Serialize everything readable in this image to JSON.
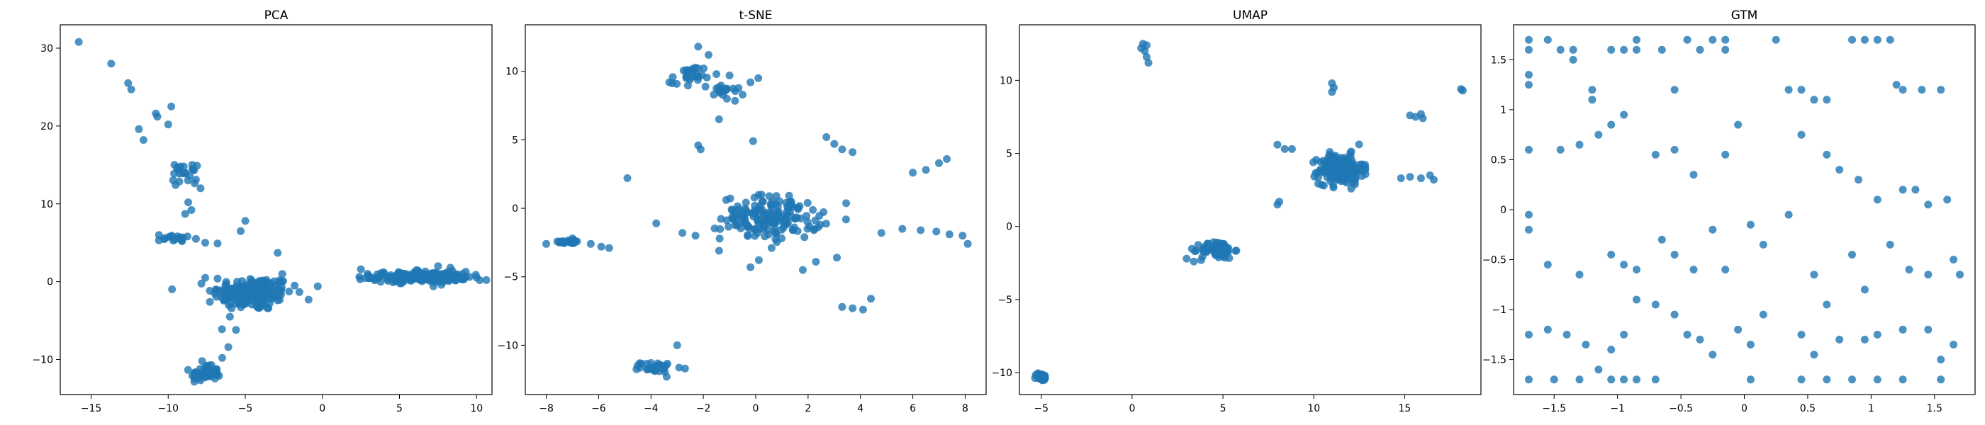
{
  "figure": {
    "background": "#ffffff",
    "marker_color": "#1f77b4",
    "marker_alpha": 0.8
  },
  "chart_data": [
    {
      "type": "scatter",
      "title": "PCA",
      "xlabel": "",
      "ylabel": "",
      "xlim": [
        -17,
        11
      ],
      "ylim": [
        -14.5,
        33
      ],
      "xticks": [
        -15,
        -10,
        -5,
        0,
        5,
        10
      ],
      "yticks": [
        -10,
        0,
        10,
        20,
        30
      ],
      "grid": false,
      "points": [
        [
          -15.8,
          30.8
        ],
        [
          -13.7,
          28.0
        ],
        [
          -12.6,
          25.5
        ],
        [
          -12.4,
          24.7
        ],
        [
          -11.9,
          19.6
        ],
        [
          -11.6,
          18.2
        ],
        [
          -10.8,
          21.6
        ],
        [
          -10.7,
          21.2
        ],
        [
          -9.8,
          22.5
        ],
        [
          -10.0,
          20.2
        ],
        [
          -9.6,
          15.0
        ],
        [
          -9.2,
          14.8
        ],
        [
          -8.9,
          14.0
        ],
        [
          -8.6,
          13.6
        ],
        [
          -8.2,
          13.1
        ],
        [
          -7.9,
          12.0
        ],
        [
          -8.7,
          10.2
        ],
        [
          -8.5,
          9.2
        ],
        [
          -8.9,
          8.7
        ],
        [
          -10.6,
          6.0
        ],
        [
          -10.2,
          5.6
        ],
        [
          -9.8,
          5.8
        ],
        [
          -8.2,
          5.5
        ],
        [
          -7.6,
          5.0
        ],
        [
          -6.8,
          4.9
        ],
        [
          -5.3,
          6.5
        ],
        [
          -5.0,
          7.8
        ],
        [
          -10.6,
          5.3
        ],
        [
          -9.1,
          5.2
        ],
        [
          -7.6,
          0.5
        ],
        [
          -6.8,
          0.4
        ],
        [
          -6.9,
          -1.0
        ],
        [
          -7.3,
          -2.6
        ],
        [
          -6.3,
          -2.2
        ],
        [
          -6.0,
          -4.5
        ],
        [
          -5.6,
          -6.2
        ],
        [
          -6.1,
          -8.4
        ],
        [
          -2.9,
          3.7
        ],
        [
          -2.6,
          1.0
        ],
        [
          -1.8,
          -0.5
        ],
        [
          -0.3,
          -0.6
        ],
        [
          -7.5,
          -10.8
        ],
        [
          -7.0,
          -11.5
        ],
        [
          -6.7,
          -12.1
        ],
        [
          -8.2,
          -12.0
        ],
        [
          -7.8,
          -10.2
        ],
        [
          -6.5,
          -9.8
        ],
        [
          2.5,
          1.6
        ],
        [
          3.1,
          0.6
        ],
        [
          4.5,
          0.4
        ],
        [
          6.2,
          1.4
        ],
        [
          7.5,
          2.0
        ],
        [
          8.3,
          1.8
        ],
        [
          9.3,
          0.6
        ],
        [
          10.2,
          0.2
        ],
        [
          3.8,
          1.1
        ],
        [
          5.7,
          0.3
        ],
        [
          7.2,
          -0.6
        ]
      ],
      "clusters": [
        {
          "center": [
            -4.5,
            -1.5
          ],
          "spread": [
            2.6,
            2.2
          ],
          "count": 180
        },
        {
          "center": [
            -7.6,
            -11.8
          ],
          "spread": [
            0.9,
            0.9
          ],
          "count": 60
        },
        {
          "center": [
            6.3,
            0.6
          ],
          "spread": [
            3.1,
            0.7
          ],
          "count": 190
        },
        {
          "center": [
            -9.1,
            13.8
          ],
          "spread": [
            0.9,
            1.1
          ],
          "count": 18
        },
        {
          "center": [
            -9.2,
            5.6
          ],
          "spread": [
            0.9,
            0.4
          ],
          "count": 12
        }
      ]
    },
    {
      "type": "scatter",
      "title": "t-SNE",
      "xlabel": "",
      "ylabel": "",
      "xlim": [
        -8.8,
        8.8
      ],
      "ylim": [
        -13.6,
        13.4
      ],
      "xticks": [
        -8,
        -6,
        -4,
        -2,
        0,
        2,
        4,
        6,
        8
      ],
      "yticks": [
        -10,
        -5,
        0,
        5,
        10
      ],
      "grid": false,
      "points": [
        [
          -2.2,
          11.8
        ],
        [
          -1.8,
          11.2
        ],
        [
          -2.4,
          10.2
        ],
        [
          -1.5,
          9.8
        ],
        [
          -3.3,
          9.2
        ],
        [
          -1.0,
          9.7
        ],
        [
          -0.2,
          9.2
        ],
        [
          0.1,
          9.5
        ],
        [
          -1.6,
          8.3
        ],
        [
          -1.1,
          8.0
        ],
        [
          -0.5,
          8.3
        ],
        [
          -1.4,
          6.5
        ],
        [
          -2.2,
          4.6
        ],
        [
          -2.1,
          4.3
        ],
        [
          -0.1,
          4.9
        ],
        [
          2.7,
          5.2
        ],
        [
          3.0,
          4.7
        ],
        [
          3.3,
          4.3
        ],
        [
          3.7,
          4.1
        ],
        [
          -4.9,
          2.2
        ],
        [
          6.0,
          2.6
        ],
        [
          6.5,
          2.8
        ],
        [
          7.0,
          3.3
        ],
        [
          7.3,
          3.6
        ],
        [
          -3.8,
          -1.1
        ],
        [
          -2.8,
          -1.8
        ],
        [
          -2.3,
          -2.0
        ],
        [
          -1.4,
          -3.1
        ],
        [
          -0.2,
          -4.3
        ],
        [
          1.8,
          -4.5
        ],
        [
          2.3,
          -3.9
        ],
        [
          3.1,
          -3.6
        ],
        [
          4.8,
          -1.8
        ],
        [
          5.6,
          -1.5
        ],
        [
          6.3,
          -1.6
        ],
        [
          6.9,
          -1.7
        ],
        [
          7.4,
          -1.9
        ],
        [
          7.9,
          -2.0
        ],
        [
          8.1,
          -2.6
        ],
        [
          3.3,
          -7.2
        ],
        [
          3.7,
          -7.3
        ],
        [
          4.1,
          -7.4
        ],
        [
          4.4,
          -6.6
        ],
        [
          -8.0,
          -2.6
        ],
        [
          -7.5,
          -2.5
        ],
        [
          -7.0,
          -2.2
        ],
        [
          -6.3,
          -2.6
        ],
        [
          -5.9,
          -2.8
        ],
        [
          -5.6,
          -2.9
        ],
        [
          -3.0,
          -10.0
        ],
        [
          -2.7,
          -11.7
        ],
        [
          -4.0,
          -11.3
        ],
        [
          -3.4,
          -12.3
        ]
      ],
      "clusters": [
        {
          "center": [
            0.6,
            -0.7
          ],
          "spread": [
            1.9,
            1.6
          ],
          "count": 170
        },
        {
          "center": [
            -3.8,
            -11.6
          ],
          "spread": [
            0.6,
            0.35
          ],
          "count": 30
        },
        {
          "center": [
            -2.6,
            9.5
          ],
          "spread": [
            0.6,
            0.9
          ],
          "count": 25
        },
        {
          "center": [
            -1.2,
            8.6
          ],
          "spread": [
            0.6,
            0.5
          ],
          "count": 18
        },
        {
          "center": [
            -7.2,
            -2.45
          ],
          "spread": [
            0.7,
            0.12
          ],
          "count": 25
        }
      ]
    },
    {
      "type": "scatter",
      "title": "UMAP",
      "xlabel": "",
      "ylabel": "",
      "xlim": [
        -6.2,
        19.2
      ],
      "ylim": [
        -11.5,
        13.8
      ],
      "xticks": [
        -5,
        0,
        5,
        10,
        15
      ],
      "yticks": [
        -10,
        -5,
        0,
        5,
        10
      ],
      "grid": false,
      "points": [
        [
          0.6,
          12.5
        ],
        [
          0.7,
          12.0
        ],
        [
          0.8,
          11.6
        ],
        [
          0.9,
          11.2
        ],
        [
          0.5,
          12.2
        ],
        [
          0.8,
          12.4
        ],
        [
          11.0,
          9.8
        ],
        [
          11.1,
          9.5
        ],
        [
          11.0,
          9.2
        ],
        [
          18.1,
          9.4
        ],
        [
          18.2,
          9.3
        ],
        [
          15.3,
          7.6
        ],
        [
          15.6,
          7.5
        ],
        [
          15.9,
          7.7
        ],
        [
          16.0,
          7.4
        ],
        [
          8.0,
          5.6
        ],
        [
          8.4,
          5.3
        ],
        [
          8.8,
          5.3
        ],
        [
          14.8,
          3.3
        ],
        [
          15.3,
          3.4
        ],
        [
          15.9,
          3.3
        ],
        [
          16.4,
          3.5
        ],
        [
          16.6,
          3.2
        ],
        [
          8.0,
          1.5
        ],
        [
          8.1,
          1.7
        ],
        [
          3.0,
          -2.2
        ],
        [
          3.4,
          -2.4
        ],
        [
          3.8,
          -2.3
        ]
      ],
      "clusters": [
        {
          "center": [
            11.5,
            3.9
          ],
          "spread": [
            1.2,
            1.0
          ],
          "count": 200
        },
        {
          "center": [
            4.7,
            -1.6
          ],
          "spread": [
            0.9,
            0.6
          ],
          "count": 70
        },
        {
          "center": [
            -5.0,
            -10.3
          ],
          "spread": [
            0.3,
            0.25
          ],
          "count": 40
        }
      ]
    },
    {
      "type": "scatter",
      "title": "GTM",
      "xlabel": "",
      "ylabel": "",
      "xlim": [
        -1.82,
        1.82
      ],
      "ylim": [
        -1.85,
        1.85
      ],
      "xticks": [
        -1.5,
        -1.0,
        -0.5,
        0.0,
        0.5,
        1.0,
        1.5
      ],
      "yticks": [
        -1.5,
        -1.0,
        -0.5,
        0.0,
        0.5,
        1.0,
        1.5
      ],
      "grid": false,
      "points": [
        [
          -1.7,
          1.7
        ],
        [
          -1.7,
          1.6
        ],
        [
          -1.7,
          1.35
        ],
        [
          -1.7,
          1.25
        ],
        [
          -1.55,
          1.7
        ],
        [
          -1.45,
          1.6
        ],
        [
          -1.35,
          1.6
        ],
        [
          -1.35,
          1.5
        ],
        [
          -1.2,
          1.2
        ],
        [
          -1.2,
          1.1
        ],
        [
          -1.05,
          1.6
        ],
        [
          -0.95,
          1.6
        ],
        [
          -0.85,
          1.7
        ],
        [
          -0.85,
          1.6
        ],
        [
          -0.65,
          1.6
        ],
        [
          -0.55,
          1.2
        ],
        [
          -0.45,
          1.7
        ],
        [
          -0.35,
          1.6
        ],
        [
          -0.25,
          1.7
        ],
        [
          -0.15,
          1.7
        ],
        [
          -0.15,
          1.6
        ],
        [
          0.25,
          1.7
        ],
        [
          0.35,
          1.2
        ],
        [
          0.45,
          1.2
        ],
        [
          0.55,
          1.1
        ],
        [
          0.65,
          1.1
        ],
        [
          0.85,
          1.7
        ],
        [
          0.95,
          1.7
        ],
        [
          1.05,
          1.7
        ],
        [
          1.15,
          1.7
        ],
        [
          1.2,
          1.25
        ],
        [
          1.25,
          1.2
        ],
        [
          1.4,
          1.2
        ],
        [
          1.55,
          1.2
        ],
        [
          -1.7,
          0.6
        ],
        [
          -1.45,
          0.6
        ],
        [
          -1.3,
          0.65
        ],
        [
          -1.15,
          0.75
        ],
        [
          -1.05,
          0.85
        ],
        [
          -0.95,
          0.95
        ],
        [
          -0.7,
          0.55
        ],
        [
          -0.55,
          0.6
        ],
        [
          -0.4,
          0.35
        ],
        [
          -0.15,
          0.55
        ],
        [
          -0.05,
          0.85
        ],
        [
          0.45,
          0.75
        ],
        [
          0.65,
          0.55
        ],
        [
          0.75,
          0.4
        ],
        [
          0.9,
          0.3
        ],
        [
          1.05,
          0.1
        ],
        [
          1.25,
          0.2
        ],
        [
          1.35,
          0.2
        ],
        [
          1.45,
          0.05
        ],
        [
          1.6,
          0.1
        ],
        [
          -1.7,
          -0.05
        ],
        [
          -1.7,
          -0.2
        ],
        [
          -1.55,
          -0.55
        ],
        [
          -1.3,
          -0.65
        ],
        [
          -1.05,
          -0.45
        ],
        [
          -0.95,
          -0.55
        ],
        [
          -0.85,
          -0.6
        ],
        [
          -0.65,
          -0.3
        ],
        [
          -0.55,
          -0.45
        ],
        [
          -0.4,
          -0.6
        ],
        [
          -0.25,
          -0.2
        ],
        [
          -0.15,
          -0.6
        ],
        [
          0.05,
          -0.15
        ],
        [
          0.15,
          -0.35
        ],
        [
          0.35,
          -0.05
        ],
        [
          0.55,
          -0.65
        ],
        [
          0.65,
          -0.95
        ],
        [
          0.85,
          -0.45
        ],
        [
          0.95,
          -0.8
        ],
        [
          1.15,
          -0.35
        ],
        [
          1.3,
          -0.6
        ],
        [
          1.45,
          -0.65
        ],
        [
          1.65,
          -0.5
        ],
        [
          1.7,
          -0.65
        ],
        [
          -1.7,
          -1.25
        ],
        [
          -1.55,
          -1.2
        ],
        [
          -1.4,
          -1.25
        ],
        [
          -1.25,
          -1.35
        ],
        [
          -1.05,
          -1.4
        ],
        [
          -0.95,
          -1.25
        ],
        [
          -0.85,
          -0.9
        ],
        [
          -0.7,
          -0.95
        ],
        [
          -0.55,
          -1.05
        ],
        [
          -0.45,
          -1.25
        ],
        [
          -0.35,
          -1.3
        ],
        [
          -0.25,
          -1.45
        ],
        [
          -0.05,
          -1.2
        ],
        [
          0.05,
          -1.35
        ],
        [
          0.15,
          -1.05
        ],
        [
          0.45,
          -1.25
        ],
        [
          0.55,
          -1.45
        ],
        [
          0.75,
          -1.3
        ],
        [
          0.95,
          -1.3
        ],
        [
          1.05,
          -1.25
        ],
        [
          1.25,
          -1.2
        ],
        [
          1.45,
          -1.2
        ],
        [
          1.55,
          -1.5
        ],
        [
          1.65,
          -1.35
        ],
        [
          -1.7,
          -1.7
        ],
        [
          -1.5,
          -1.7
        ],
        [
          -1.3,
          -1.7
        ],
        [
          -1.15,
          -1.6
        ],
        [
          -1.05,
          -1.7
        ],
        [
          -0.95,
          -1.7
        ],
        [
          -0.85,
          -1.7
        ],
        [
          -0.7,
          -1.7
        ],
        [
          0.05,
          -1.7
        ],
        [
          0.45,
          -1.7
        ],
        [
          0.65,
          -1.7
        ],
        [
          0.85,
          -1.7
        ],
        [
          1.05,
          -1.7
        ],
        [
          1.25,
          -1.7
        ],
        [
          1.55,
          -1.7
        ]
      ],
      "clusters": []
    }
  ]
}
